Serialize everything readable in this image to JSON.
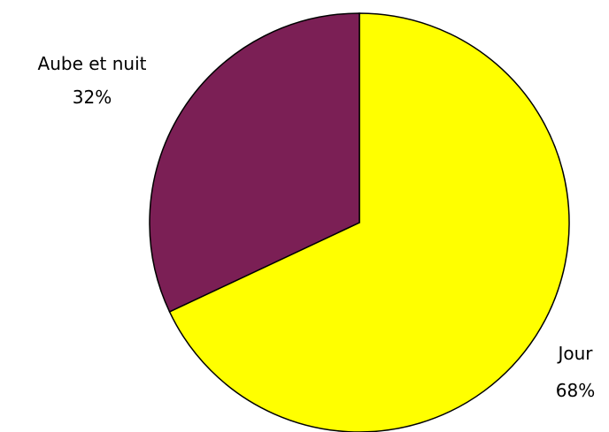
{
  "chart_data": {
    "type": "pie",
    "title": "",
    "slices": [
      {
        "label": "Jour",
        "value": 68,
        "value_label": "68%",
        "color": "#FFFF00"
      },
      {
        "label": "Aube et nuit",
        "value": 32,
        "value_label": "32%",
        "color": "#7B1F55"
      }
    ],
    "start_angle_deg": 0,
    "direction": "clockwise",
    "legend": "none",
    "outline_color": "#000000"
  }
}
